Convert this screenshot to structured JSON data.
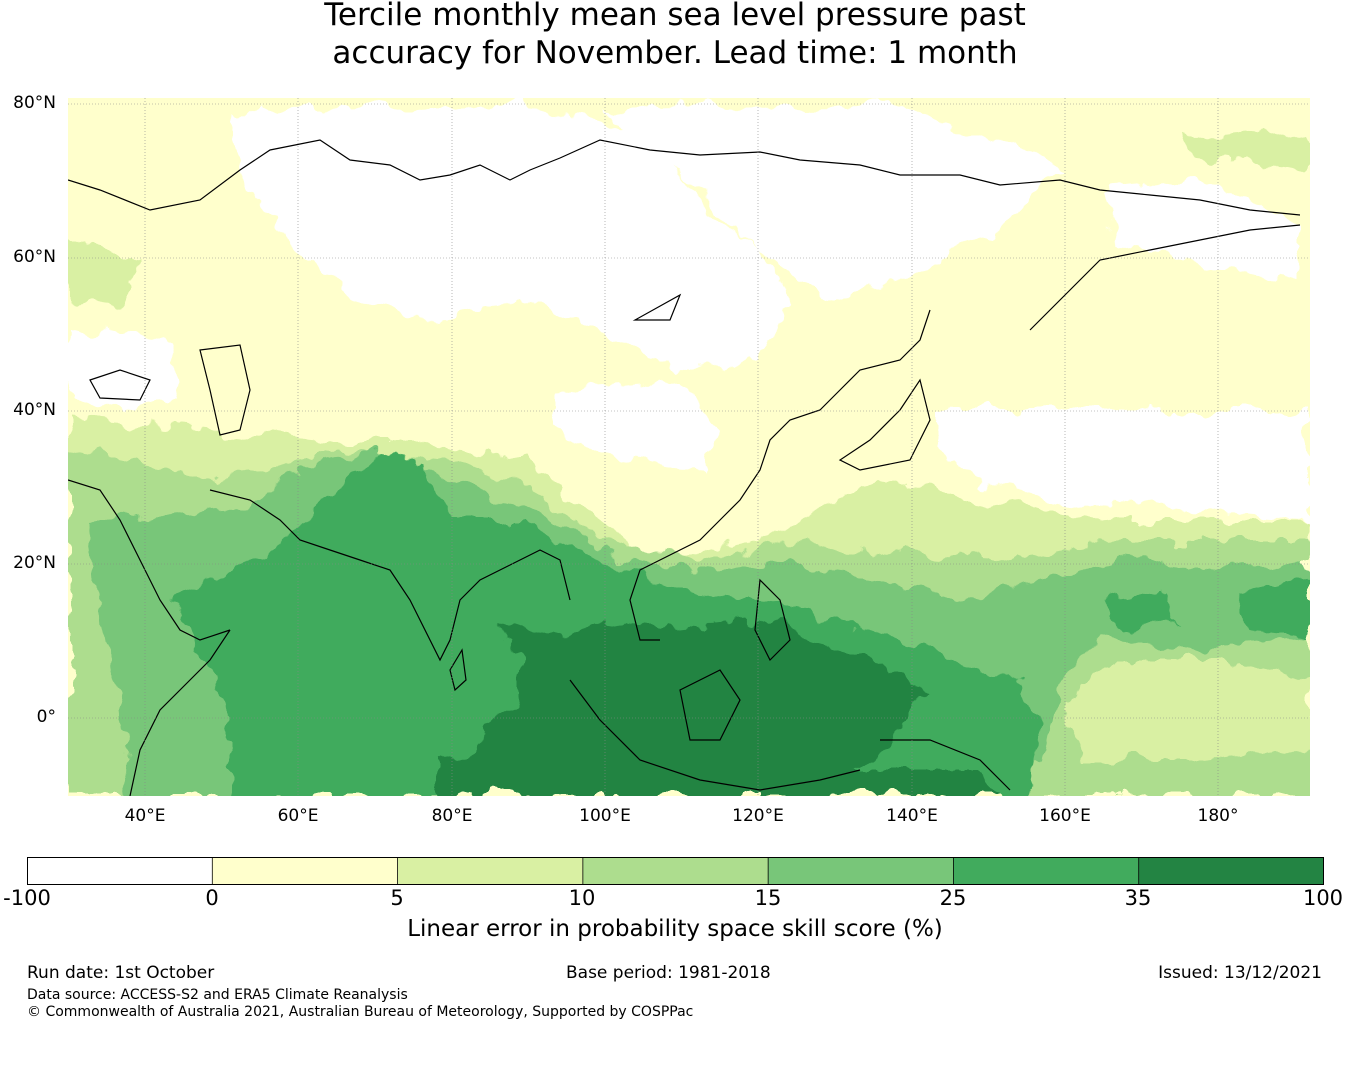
{
  "title_line1": "Tercile monthly mean sea level pressure past",
  "title_line2": "accuracy for November. Lead time: 1 month",
  "map": {
    "lat_labels": [
      "80°N",
      "60°N",
      "40°N",
      "20°N",
      "0°"
    ],
    "lon_labels": [
      "40°E",
      "60°E",
      "80°E",
      "100°E",
      "120°E",
      "140°E",
      "160°E",
      "180°"
    ],
    "lon_range": [
      30,
      192
    ],
    "lat_range": [
      -10,
      80
    ]
  },
  "colorbar": {
    "ticks": [
      "-100",
      "0",
      "5",
      "10",
      "15",
      "25",
      "35",
      "100"
    ],
    "colors": [
      "#ffffff",
      "#ffffcc",
      "#d9f0a3",
      "#addd8e",
      "#78c679",
      "#41ab5d",
      "#238443"
    ],
    "label": "Linear error in probability space skill score (%)"
  },
  "footer": {
    "run_date": "Run date: 1st October",
    "base_period": "Base period: 1981-2018",
    "issued": "Issued: 13/12/2021",
    "data_source": "Data source: ACCESS-S2 and ERA5 Climate Reanalysis",
    "copyright": "© Commonwealth of Australia 2021, Australian Bureau of Meteorology, Supported by COSPPac"
  }
}
